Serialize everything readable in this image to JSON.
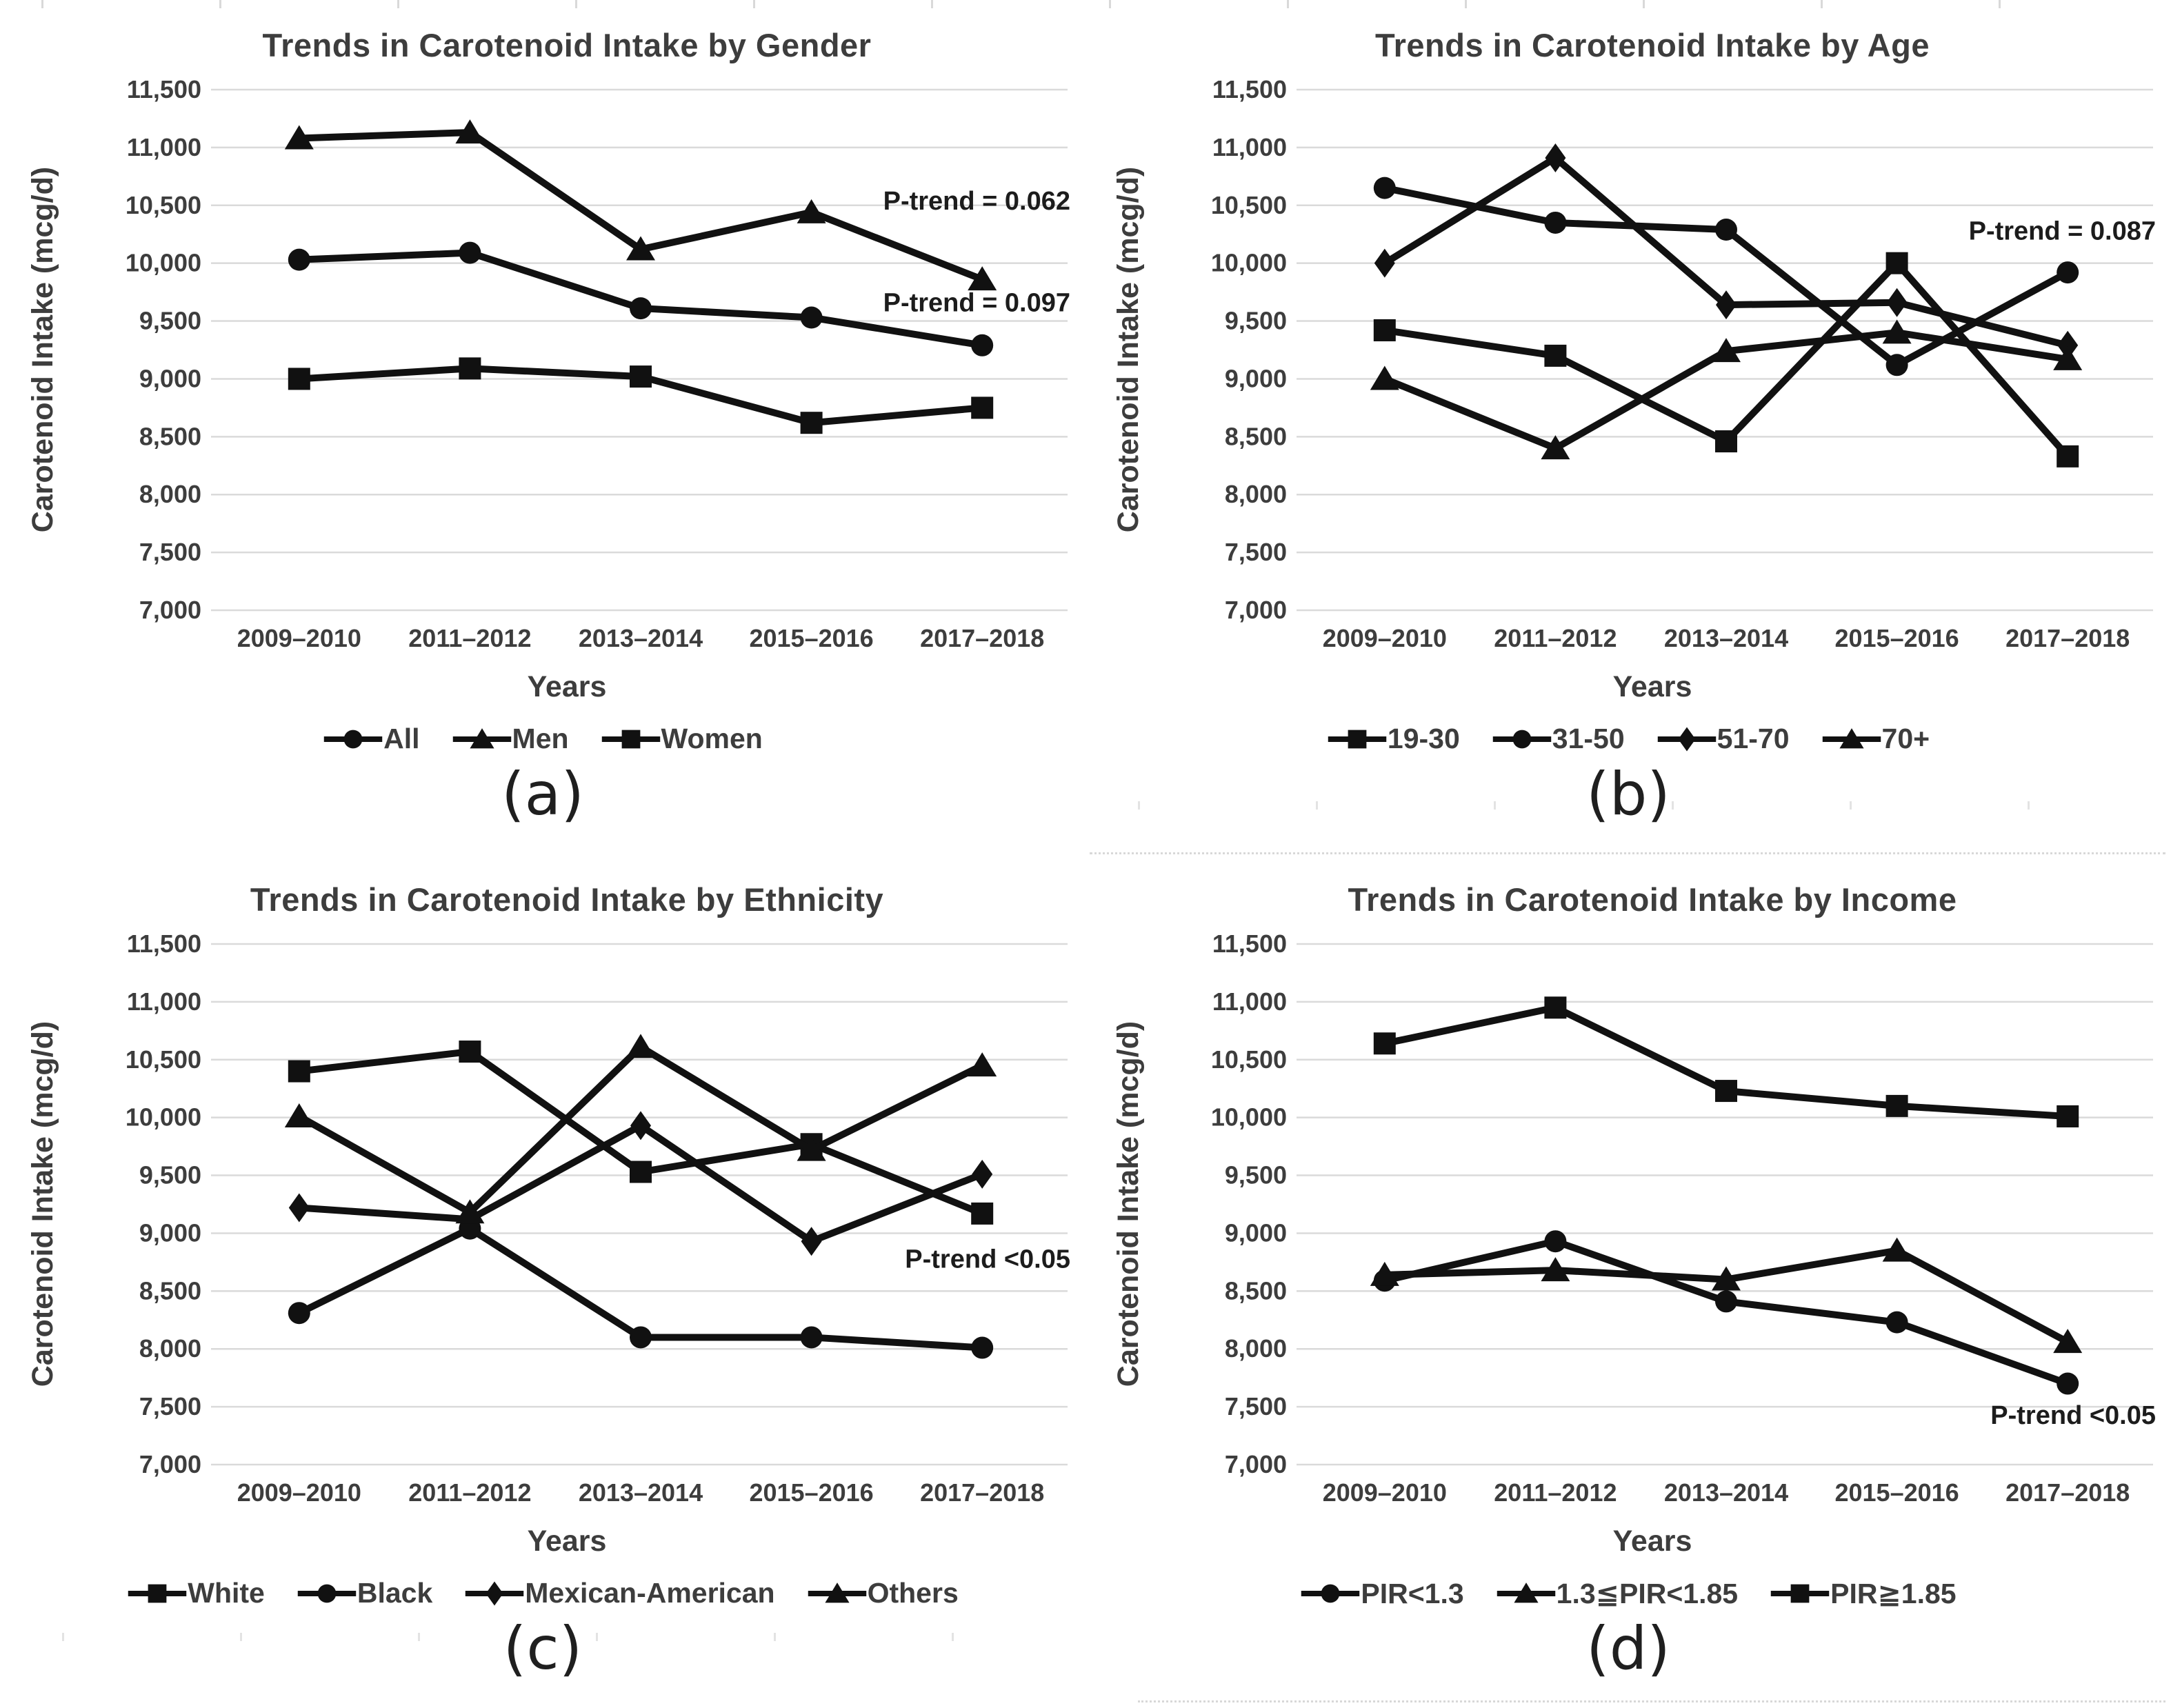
{
  "figure": {
    "kind": "four-panel line figure",
    "background": "#ffffff"
  },
  "colors": {
    "line": "#111111",
    "grid": "#dadada",
    "label": "#3d3d3d",
    "annotation": "#1c1c1c"
  },
  "chart_data": [
    {
      "type": "line",
      "letter": "(a)",
      "title": "Trends in Carotenoid Intake by Gender",
      "xlabel": "Years",
      "ylabel": "Carotenoid Intake (mcg/d)",
      "ylim": [
        7000,
        11500
      ],
      "ytick_step": 500,
      "grid": true,
      "legend_position": "bottom",
      "categories": [
        "2009–2010",
        "2011–2012",
        "2013–2014",
        "2015–2016",
        "2017–2018"
      ],
      "series": [
        {
          "name": "All",
          "marker": "circle",
          "values": [
            10030,
            10090,
            9610,
            9530,
            9290
          ]
        },
        {
          "name": "Men",
          "marker": "triangle",
          "values": [
            11080,
            11130,
            10120,
            10440,
            9860
          ]
        },
        {
          "name": "Women",
          "marker": "square",
          "values": [
            9000,
            9090,
            9020,
            8620,
            8750
          ]
        }
      ],
      "annotations": [
        {
          "text": "P-trend = 0.062",
          "value": 10540
        },
        {
          "text": "P-trend = 0.097",
          "value": 9660
        }
      ]
    },
    {
      "type": "line",
      "letter": "(b)",
      "title": "Trends in Carotenoid Intake by Age",
      "xlabel": "Years",
      "ylabel": "Carotenoid Intake (mcg/d)",
      "ylim": [
        7000,
        11500
      ],
      "ytick_step": 500,
      "grid": true,
      "legend_position": "bottom",
      "categories": [
        "2009–2010",
        "2011–2012",
        "2013–2014",
        "2015–2016",
        "2017–2018"
      ],
      "series": [
        {
          "name": "19-30",
          "marker": "square",
          "values": [
            9420,
            9200,
            8460,
            10000,
            8330
          ]
        },
        {
          "name": "31-50",
          "marker": "circle",
          "values": [
            10650,
            10350,
            10290,
            9120,
            9920
          ]
        },
        {
          "name": "51-70",
          "marker": "diamond",
          "values": [
            10000,
            10910,
            9640,
            9660,
            9290
          ]
        },
        {
          "name": "70+",
          "marker": "triangle",
          "values": [
            9000,
            8400,
            9240,
            9400,
            9170
          ]
        }
      ],
      "annotations": [
        {
          "text": "P-trend = 0.087",
          "value": 10280
        }
      ]
    },
    {
      "type": "line",
      "letter": "(c)",
      "title": "Trends in Carotenoid Intake by Ethnicity",
      "xlabel": "Years",
      "ylabel": "Carotenoid Intake (mcg/d)",
      "ylim": [
        7000,
        11500
      ],
      "ytick_step": 500,
      "grid": true,
      "legend_position": "bottom",
      "categories": [
        "2009–2010",
        "2011–2012",
        "2013–2014",
        "2015–2016",
        "2017–2018"
      ],
      "series": [
        {
          "name": "White",
          "marker": "square",
          "values": [
            10400,
            10570,
            9530,
            9770,
            9170
          ]
        },
        {
          "name": "Black",
          "marker": "circle",
          "values": [
            8310,
            9040,
            8100,
            8100,
            8010
          ]
        },
        {
          "name": "Mexican-American",
          "marker": "diamond",
          "values": [
            9220,
            9120,
            9930,
            8930,
            9510
          ]
        },
        {
          "name": "Others",
          "marker": "triangle",
          "values": [
            10010,
            9180,
            10610,
            9720,
            10450
          ]
        }
      ],
      "annotations": [
        {
          "text": "P-trend <0.05",
          "value": 8780
        }
      ]
    },
    {
      "type": "line",
      "letter": "(d)",
      "title": "Trends in Carotenoid Intake by Income",
      "xlabel": "Years",
      "ylabel": "Carotenoid Intake (mcg/d)",
      "ylim": [
        7000,
        11500
      ],
      "ytick_step": 500,
      "grid": true,
      "legend_position": "bottom",
      "categories": [
        "2009–2010",
        "2011–2012",
        "2013–2014",
        "2015–2016",
        "2017–2018"
      ],
      "series": [
        {
          "name": "PIR<1.3",
          "marker": "circle",
          "values": [
            8590,
            8930,
            8410,
            8230,
            7700
          ]
        },
        {
          "name": "1.3≦PIR<1.85",
          "marker": "triangle",
          "values": [
            8640,
            8680,
            8600,
            8850,
            8060
          ]
        },
        {
          "name": "PIR≧1.85",
          "marker": "square",
          "values": [
            10640,
            10950,
            10230,
            10100,
            10010
          ]
        }
      ],
      "annotations": [
        {
          "text": "P-trend <0.05",
          "value": 7430
        }
      ]
    }
  ]
}
